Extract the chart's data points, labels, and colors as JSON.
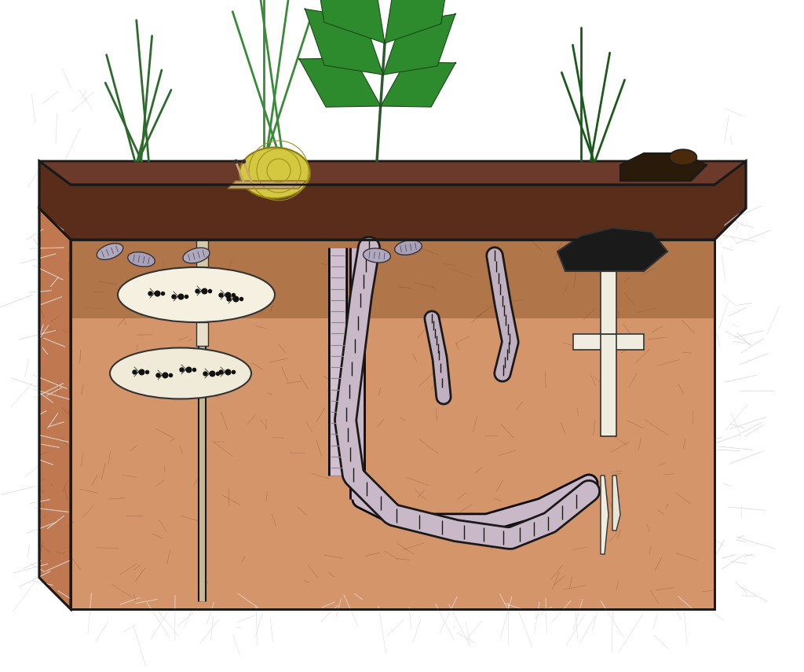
{
  "background_color": "#ffffff",
  "soil_dark_color": "#6B3A2A",
  "soil_mid_color": "#C4845A",
  "soil_light_color": "#D4956A",
  "soil_pale_color": "#E8B090",
  "outline_color": "#1a1a1a",
  "grass_colors": [
    "#2D6B2D",
    "#3A8A3A",
    "#1A5A1A",
    "#4A9A4A"
  ],
  "snail_shell_color": "#D4C840",
  "snail_body_color": "#C8A870",
  "ant_color": "#111111",
  "ant_nest_color": "#F5F0E0",
  "worm_color": "#C0B0C0",
  "worm_dark_color": "#1a1a1a",
  "fungus_color": "#F5F0E0",
  "slug_color": "#333333",
  "root_color": "#E8D0A0",
  "fig_width": 10.24,
  "fig_height": 8.55,
  "dpi": 100
}
